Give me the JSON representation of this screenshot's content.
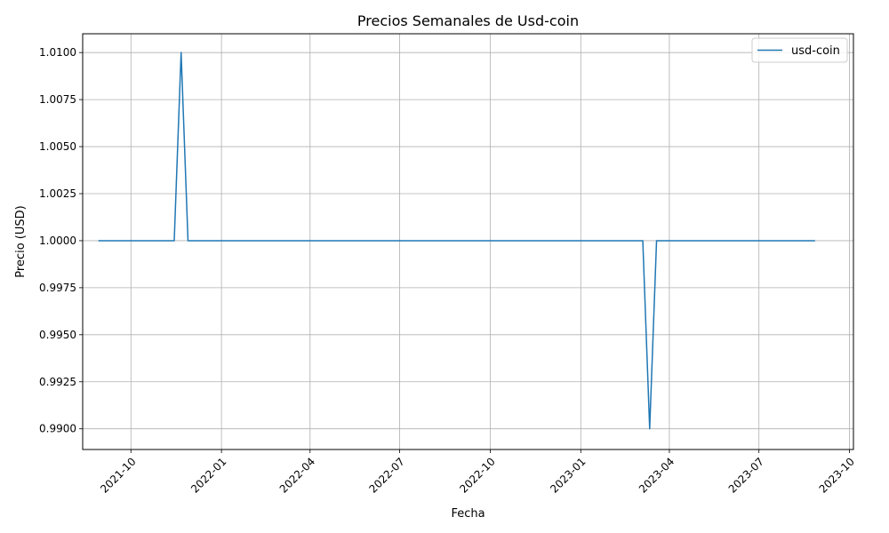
{
  "chart_data": {
    "type": "line",
    "title": "Precios Semanales de Usd-coin",
    "xlabel": "Fecha",
    "ylabel": "Precio (USD)",
    "grid": true,
    "legend_position": "top-right",
    "x_range": [
      "2021-08-13",
      "2023-10-05"
    ],
    "ylim": [
      0.9889,
      1.011
    ],
    "y_ticks": [
      0.99,
      0.9925,
      0.995,
      0.9975,
      1.0,
      1.0025,
      1.005,
      1.0075,
      1.01
    ],
    "y_tick_labels": [
      "0.9900",
      "0.9925",
      "0.9950",
      "0.9975",
      "1.0000",
      "1.0025",
      "1.0050",
      "1.0075",
      "1.0100"
    ],
    "x_ticks": [
      "2021-10-01",
      "2022-01-01",
      "2022-04-01",
      "2022-07-01",
      "2022-10-01",
      "2023-01-01",
      "2023-04-01",
      "2023-07-01",
      "2023-10-01"
    ],
    "x_tick_labels": [
      "2021-10",
      "2022-01",
      "2022-04",
      "2022-07",
      "2022-10",
      "2023-01",
      "2023-04",
      "2023-07",
      "2023-10"
    ],
    "series": [
      {
        "name": "usd-coin",
        "color": "#1f77b4",
        "points": [
          {
            "x": "2021-08-29",
            "y": 1.0
          },
          {
            "x": "2021-11-14",
            "y": 1.0
          },
          {
            "x": "2021-11-21",
            "y": 1.01
          },
          {
            "x": "2021-11-28",
            "y": 1.0
          },
          {
            "x": "2023-03-05",
            "y": 1.0
          },
          {
            "x": "2023-03-12",
            "y": 0.99
          },
          {
            "x": "2023-03-19",
            "y": 1.0
          },
          {
            "x": "2023-08-27",
            "y": 1.0
          }
        ]
      }
    ]
  }
}
